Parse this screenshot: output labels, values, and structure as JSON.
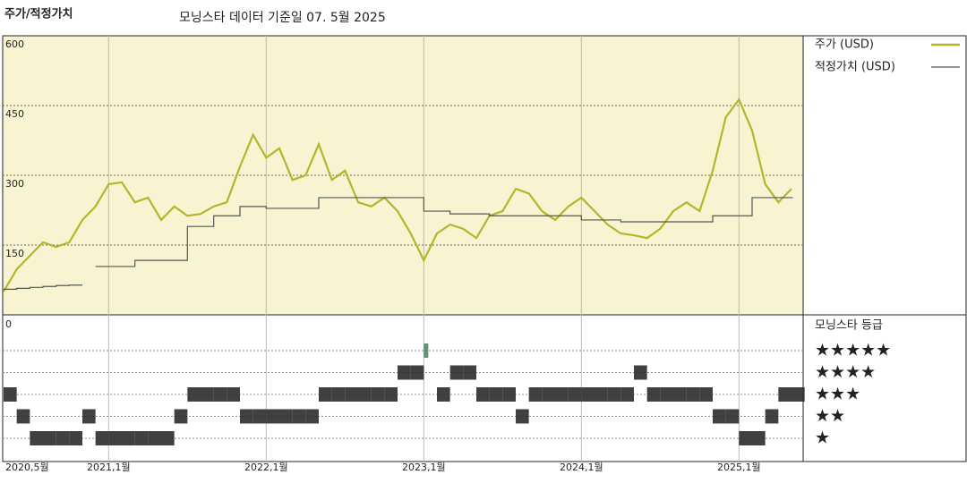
{
  "chart_data": [
    {
      "type": "line",
      "title": "주가/적정가치",
      "subtitle": "모닝스타 데이터 기준일 07. 5월 2025",
      "x": [
        "2020-05",
        "2020-06",
        "2020-07",
        "2020-08",
        "2020-09",
        "2020-10",
        "2020-11",
        "2020-12",
        "2021-01",
        "2021-02",
        "2021-03",
        "2021-04",
        "2021-05",
        "2021-06",
        "2021-07",
        "2021-08",
        "2021-09",
        "2021-10",
        "2021-11",
        "2021-12",
        "2022-01",
        "2022-02",
        "2022-03",
        "2022-04",
        "2022-05",
        "2022-06",
        "2022-07",
        "2022-08",
        "2022-09",
        "2022-10",
        "2022-11",
        "2022-12",
        "2023-01",
        "2023-02",
        "2023-03",
        "2023-04",
        "2023-05",
        "2023-06",
        "2023-07",
        "2023-08",
        "2023-09",
        "2023-10",
        "2023-11",
        "2023-12",
        "2024-01",
        "2024-02",
        "2024-03",
        "2024-04",
        "2024-05",
        "2024-06",
        "2024-07",
        "2024-08",
        "2024-09",
        "2024-10",
        "2024-11",
        "2024-12",
        "2025-01",
        "2025-02",
        "2025-03",
        "2025-04",
        "2025-05"
      ],
      "series": [
        {
          "name": "주가 (USD)",
          "color": "#b3b62a",
          "values": [
            50,
            98,
            127,
            156,
            146,
            156,
            204,
            233,
            281,
            285,
            242,
            252,
            204,
            233,
            213,
            217,
            233,
            242,
            319,
            387,
            338,
            358,
            290,
            300,
            367,
            290,
            310,
            242,
            233,
            252,
            223,
            175,
            117,
            175,
            194,
            185,
            165,
            213,
            223,
            271,
            261,
            223,
            204,
            233,
            252,
            223,
            194,
            175,
            171,
            165,
            185,
            223,
            242,
            223,
            310,
            425,
            463,
            396,
            281,
            242,
            271
          ]
        },
        {
          "name": "적정가치 (USD)",
          "color": "#555555",
          "step": true,
          "values": [
            55,
            57,
            59,
            61,
            63,
            64,
            null,
            104,
            104,
            104,
            117,
            117,
            117,
            117,
            190,
            190,
            213,
            213,
            233,
            233,
            229,
            229,
            229,
            229,
            252,
            252,
            252,
            252,
            252,
            252,
            252,
            252,
            223,
            223,
            217,
            217,
            217,
            213,
            213,
            213,
            213,
            213,
            213,
            213,
            204,
            204,
            204,
            200,
            200,
            200,
            200,
            200,
            200,
            200,
            213,
            213,
            213,
            252,
            252,
            252,
            252
          ]
        }
      ],
      "ylim": [
        0,
        600
      ],
      "yticks": [
        150,
        300,
        450,
        600
      ],
      "grid": true,
      "legend": "right",
      "xticks": [
        {
          "value": "2020-05",
          "label": "2020,5월"
        },
        {
          "value": "2021-01",
          "label": "2021,1월"
        },
        {
          "value": "2022-01",
          "label": "2022,1월"
        },
        {
          "value": "2023-01",
          "label": "2023,1월"
        },
        {
          "value": "2024-01",
          "label": "2024,1월"
        },
        {
          "value": "2025-01",
          "label": "2025,1월"
        }
      ]
    },
    {
      "type": "timeline",
      "title": "모닝스타 등급",
      "color": "#2b2b2b",
      "top_color": "#4f8a6c",
      "values": [
        3,
        2,
        1,
        1,
        1,
        1,
        2,
        1,
        1,
        1,
        1,
        1,
        1,
        2,
        3,
        3,
        3,
        3,
        2,
        2,
        2,
        2,
        2,
        2,
        3,
        3,
        3,
        3,
        3,
        3,
        4,
        4,
        5,
        3,
        4,
        4,
        3,
        3,
        3,
        2,
        3,
        3,
        3,
        3,
        3,
        3,
        3,
        3,
        4,
        3,
        3,
        3,
        3,
        3,
        2,
        2,
        1,
        1,
        2,
        3,
        3
      ],
      "levels": [
        5,
        4,
        3,
        2,
        1
      ],
      "level_labels": [
        "★★★★★",
        "★★★★",
        "★★★",
        "★★",
        "★"
      ],
      "yticks": [
        0
      ]
    }
  ]
}
